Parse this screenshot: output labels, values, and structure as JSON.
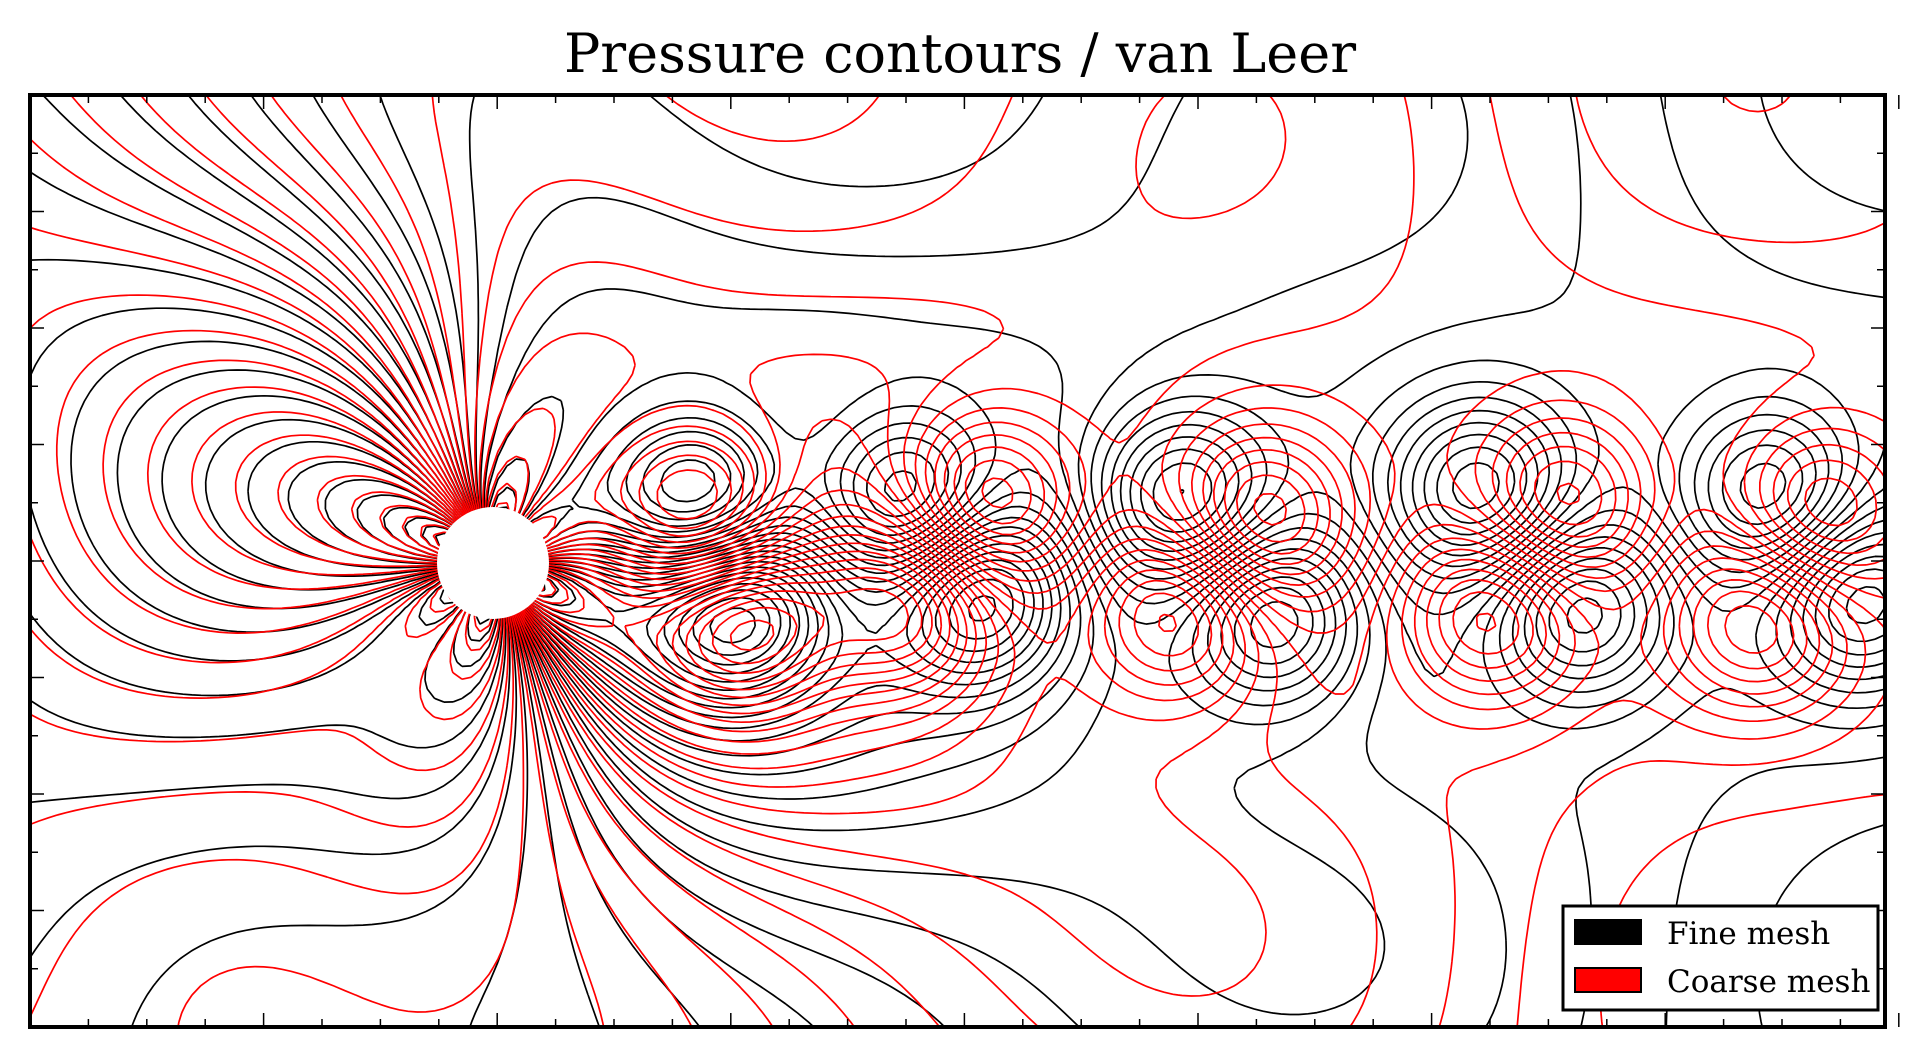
{
  "chart_data": {
    "type": "contour",
    "title": "Pressure contours / van Leer",
    "xlabel": "",
    "ylabel": "",
    "grid": false,
    "tick_labels_shown": false,
    "legend_placement": "bottom-right",
    "legend": [
      {
        "label": "Fine mesh",
        "color": "#000000"
      },
      {
        "label": "Coarse mesh",
        "color": "#ff0000"
      }
    ],
    "series": [
      {
        "name": "Fine mesh",
        "color": "#000000"
      },
      {
        "name": "Coarse mesh",
        "color": "#ff0000"
      }
    ]
  }
}
